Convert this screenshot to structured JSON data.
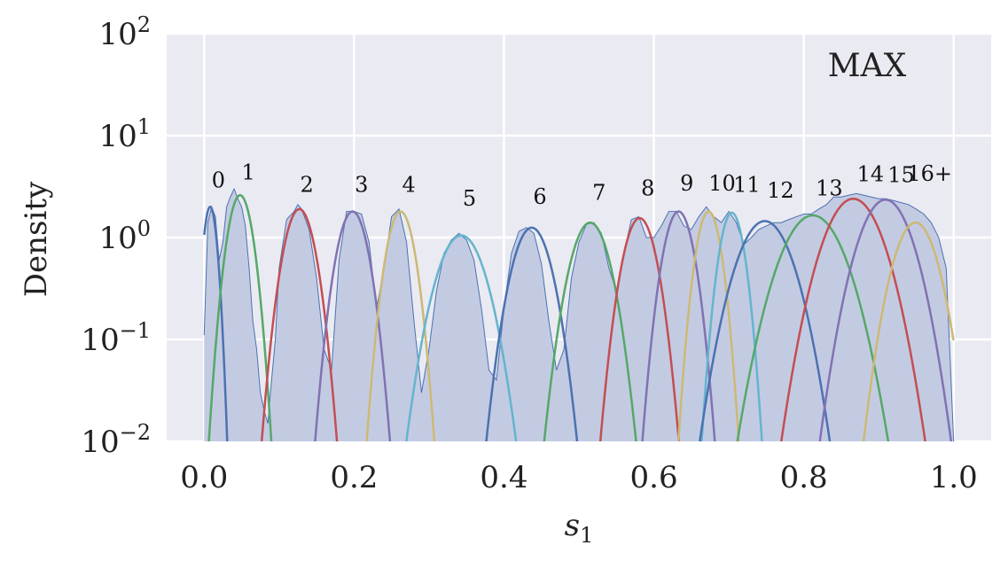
{
  "chart_data": {
    "type": "area",
    "title": "",
    "xlabel": "s",
    "xlabel_sub": "1",
    "ylabel": "Density",
    "annotation": "MAX",
    "xlim": [
      -0.05,
      1.05
    ],
    "ylim": [
      0.01,
      100
    ],
    "yscale": "log",
    "grid": true,
    "legend": "none",
    "background": "#eaeaf2",
    "x_ticks": [
      {
        "value": 0.0,
        "label": "0.0"
      },
      {
        "value": 0.2,
        "label": "0.2"
      },
      {
        "value": 0.4,
        "label": "0.4"
      },
      {
        "value": 0.6,
        "label": "0.6"
      },
      {
        "value": 0.8,
        "label": "0.8"
      },
      {
        "value": 1.0,
        "label": "1.0"
      }
    ],
    "y_ticks": [
      {
        "value": 0.01,
        "base": "10",
        "exp": "−2"
      },
      {
        "value": 0.1,
        "base": "10",
        "exp": "−1"
      },
      {
        "value": 1,
        "base": "10",
        "exp": "0"
      },
      {
        "value": 10,
        "base": "10",
        "exp": "1"
      },
      {
        "value": 100,
        "base": "10",
        "exp": "2"
      }
    ],
    "histogram": {
      "fill": "#c3cbe3",
      "line": "#4c72b0",
      "x": [
        0.0,
        0.005,
        0.01,
        0.015,
        0.02,
        0.025,
        0.03,
        0.035,
        0.04,
        0.045,
        0.05,
        0.055,
        0.06,
        0.065,
        0.07,
        0.075,
        0.08,
        0.085,
        0.09,
        0.095,
        0.1,
        0.11,
        0.12,
        0.125,
        0.13,
        0.14,
        0.15,
        0.16,
        0.17,
        0.18,
        0.19,
        0.2,
        0.21,
        0.22,
        0.23,
        0.24,
        0.25,
        0.26,
        0.27,
        0.28,
        0.29,
        0.3,
        0.31,
        0.32,
        0.33,
        0.34,
        0.35,
        0.36,
        0.37,
        0.38,
        0.39,
        0.4,
        0.41,
        0.42,
        0.43,
        0.44,
        0.45,
        0.46,
        0.47,
        0.48,
        0.49,
        0.5,
        0.51,
        0.52,
        0.53,
        0.54,
        0.55,
        0.56,
        0.57,
        0.58,
        0.59,
        0.6,
        0.61,
        0.62,
        0.63,
        0.64,
        0.65,
        0.66,
        0.67,
        0.68,
        0.69,
        0.7,
        0.71,
        0.72,
        0.73,
        0.74,
        0.75,
        0.76,
        0.77,
        0.78,
        0.79,
        0.8,
        0.81,
        0.82,
        0.83,
        0.84,
        0.85,
        0.86,
        0.87,
        0.88,
        0.89,
        0.9,
        0.91,
        0.92,
        0.93,
        0.94,
        0.95,
        0.96,
        0.97,
        0.98,
        0.99,
        1.0
      ],
      "y": [
        0.11,
        1.4,
        2.0,
        1.6,
        0.6,
        0.9,
        2.0,
        2.5,
        3.0,
        2.4,
        2.0,
        1.3,
        0.5,
        0.15,
        0.08,
        0.03,
        0.02,
        0.015,
        0.04,
        0.1,
        0.5,
        1.5,
        1.8,
        2.1,
        1.9,
        1.2,
        0.4,
        0.08,
        0.05,
        0.6,
        1.8,
        1.8,
        1.7,
        0.9,
        0.2,
        0.5,
        1.6,
        1.9,
        0.9,
        0.15,
        0.03,
        0.08,
        0.3,
        0.7,
        0.95,
        1.1,
        0.95,
        0.6,
        0.2,
        0.05,
        0.04,
        0.2,
        0.7,
        1.15,
        1.25,
        1.1,
        0.55,
        0.15,
        0.05,
        0.08,
        0.4,
        0.9,
        1.35,
        1.4,
        1.1,
        0.5,
        0.3,
        0.7,
        1.5,
        1.6,
        1.0,
        1.0,
        1.3,
        1.8,
        1.8,
        1.3,
        1.2,
        1.6,
        2.0,
        1.6,
        1.4,
        1.8,
        1.4,
        0.85,
        1.0,
        1.2,
        1.3,
        1.4,
        1.4,
        1.5,
        1.6,
        1.7,
        1.7,
        1.9,
        2.1,
        2.5,
        2.5,
        2.6,
        2.7,
        2.6,
        2.5,
        2.4,
        2.4,
        2.3,
        2.2,
        2.1,
        1.9,
        1.7,
        1.4,
        1.0,
        0.5,
        0.01
      ]
    },
    "series": [
      {
        "name": "0",
        "mu": 0.008,
        "sigma": 0.007,
        "peak": 2.0,
        "color": "#4c72b0"
      },
      {
        "name": "1",
        "mu": 0.048,
        "sigma": 0.0125,
        "peak": 2.6,
        "color": "#55a868"
      },
      {
        "name": "2",
        "mu": 0.127,
        "sigma": 0.0155,
        "peak": 1.9,
        "color": "#c44e52"
      },
      {
        "name": "3",
        "mu": 0.198,
        "sigma": 0.0155,
        "peak": 1.8,
        "color": "#8172b2"
      },
      {
        "name": "4",
        "mu": 0.262,
        "sigma": 0.014,
        "peak": 1.8,
        "color": "#ccb974"
      },
      {
        "name": "5",
        "mu": 0.343,
        "sigma": 0.024,
        "peak": 1.05,
        "color": "#64b5cd"
      },
      {
        "name": "6",
        "mu": 0.437,
        "sigma": 0.0195,
        "peak": 1.25,
        "color": "#4c72b0"
      },
      {
        "name": "7",
        "mu": 0.515,
        "sigma": 0.0195,
        "peak": 1.4,
        "color": "#55a868"
      },
      {
        "name": "8",
        "mu": 0.581,
        "sigma": 0.0165,
        "peak": 1.55,
        "color": "#c44e52"
      },
      {
        "name": "9",
        "mu": 0.633,
        "sigma": 0.015,
        "peak": 1.8,
        "color": "#8172b2"
      },
      {
        "name": "10",
        "mu": 0.673,
        "sigma": 0.0125,
        "peak": 1.8,
        "color": "#ccb974"
      },
      {
        "name": "11",
        "mu": 0.704,
        "sigma": 0.0125,
        "peak": 1.75,
        "color": "#64b5cd"
      },
      {
        "name": "12",
        "mu": 0.748,
        "sigma": 0.0275,
        "peak": 1.45,
        "color": "#4c72b0"
      },
      {
        "name": "13",
        "mu": 0.812,
        "sigma": 0.0315,
        "peak": 1.65,
        "color": "#55a868"
      },
      {
        "name": "14",
        "mu": 0.866,
        "sigma": 0.029,
        "peak": 2.4,
        "color": "#c44e52"
      },
      {
        "name": "15",
        "mu": 0.909,
        "sigma": 0.0265,
        "peak": 2.35,
        "color": "#8172b2"
      },
      {
        "name": "16+",
        "mu": 0.949,
        "sigma": 0.022,
        "peak": 1.4,
        "color": "#ccb974"
      }
    ],
    "peak_labels": [
      {
        "text": "0",
        "x": 0.019,
        "y": 3.1
      },
      {
        "text": "1",
        "x": 0.059,
        "y": 3.7
      },
      {
        "text": "2",
        "x": 0.137,
        "y": 2.8
      },
      {
        "text": "3",
        "x": 0.21,
        "y": 2.8
      },
      {
        "text": "4",
        "x": 0.273,
        "y": 2.8
      },
      {
        "text": "5",
        "x": 0.354,
        "y": 2.05
      },
      {
        "text": "6",
        "x": 0.448,
        "y": 2.15
      },
      {
        "text": "7",
        "x": 0.527,
        "y": 2.35
      },
      {
        "text": "8",
        "x": 0.592,
        "y": 2.6
      },
      {
        "text": "9",
        "x": 0.644,
        "y": 2.9
      },
      {
        "text": "10",
        "x": 0.691,
        "y": 2.9
      },
      {
        "text": "11",
        "x": 0.724,
        "y": 2.8
      },
      {
        "text": "12",
        "x": 0.769,
        "y": 2.45
      },
      {
        "text": "13",
        "x": 0.834,
        "y": 2.6
      },
      {
        "text": "14",
        "x": 0.889,
        "y": 3.55
      },
      {
        "text": "15",
        "x": 0.93,
        "y": 3.5
      },
      {
        "text": "16+",
        "x": 0.968,
        "y": 3.6
      }
    ]
  }
}
